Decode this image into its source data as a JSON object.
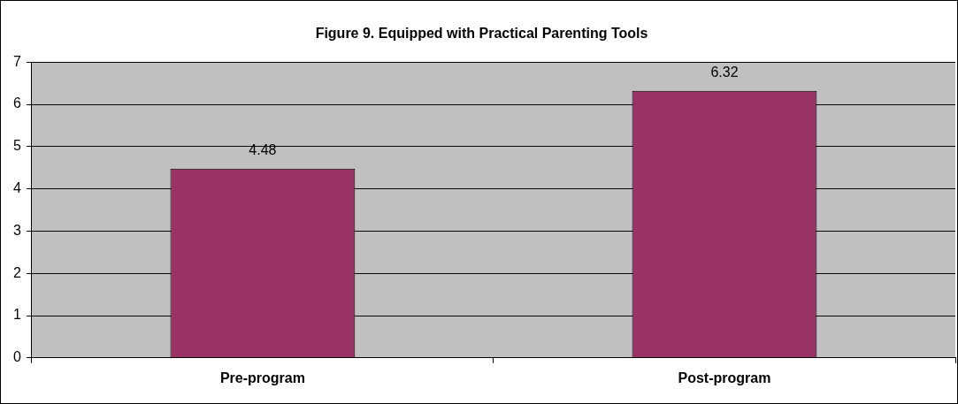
{
  "chart_data": {
    "type": "bar",
    "title": "Figure 9. Equipped with Practical Parenting Tools",
    "categories": [
      "Pre-program",
      "Post-program"
    ],
    "values": [
      4.48,
      6.32
    ],
    "color": "#993366",
    "ylim": [
      0,
      7
    ],
    "yticks": [
      0,
      1,
      2,
      3,
      4,
      5,
      6,
      7
    ],
    "grid": "y",
    "data_labels": true,
    "legend": false
  }
}
